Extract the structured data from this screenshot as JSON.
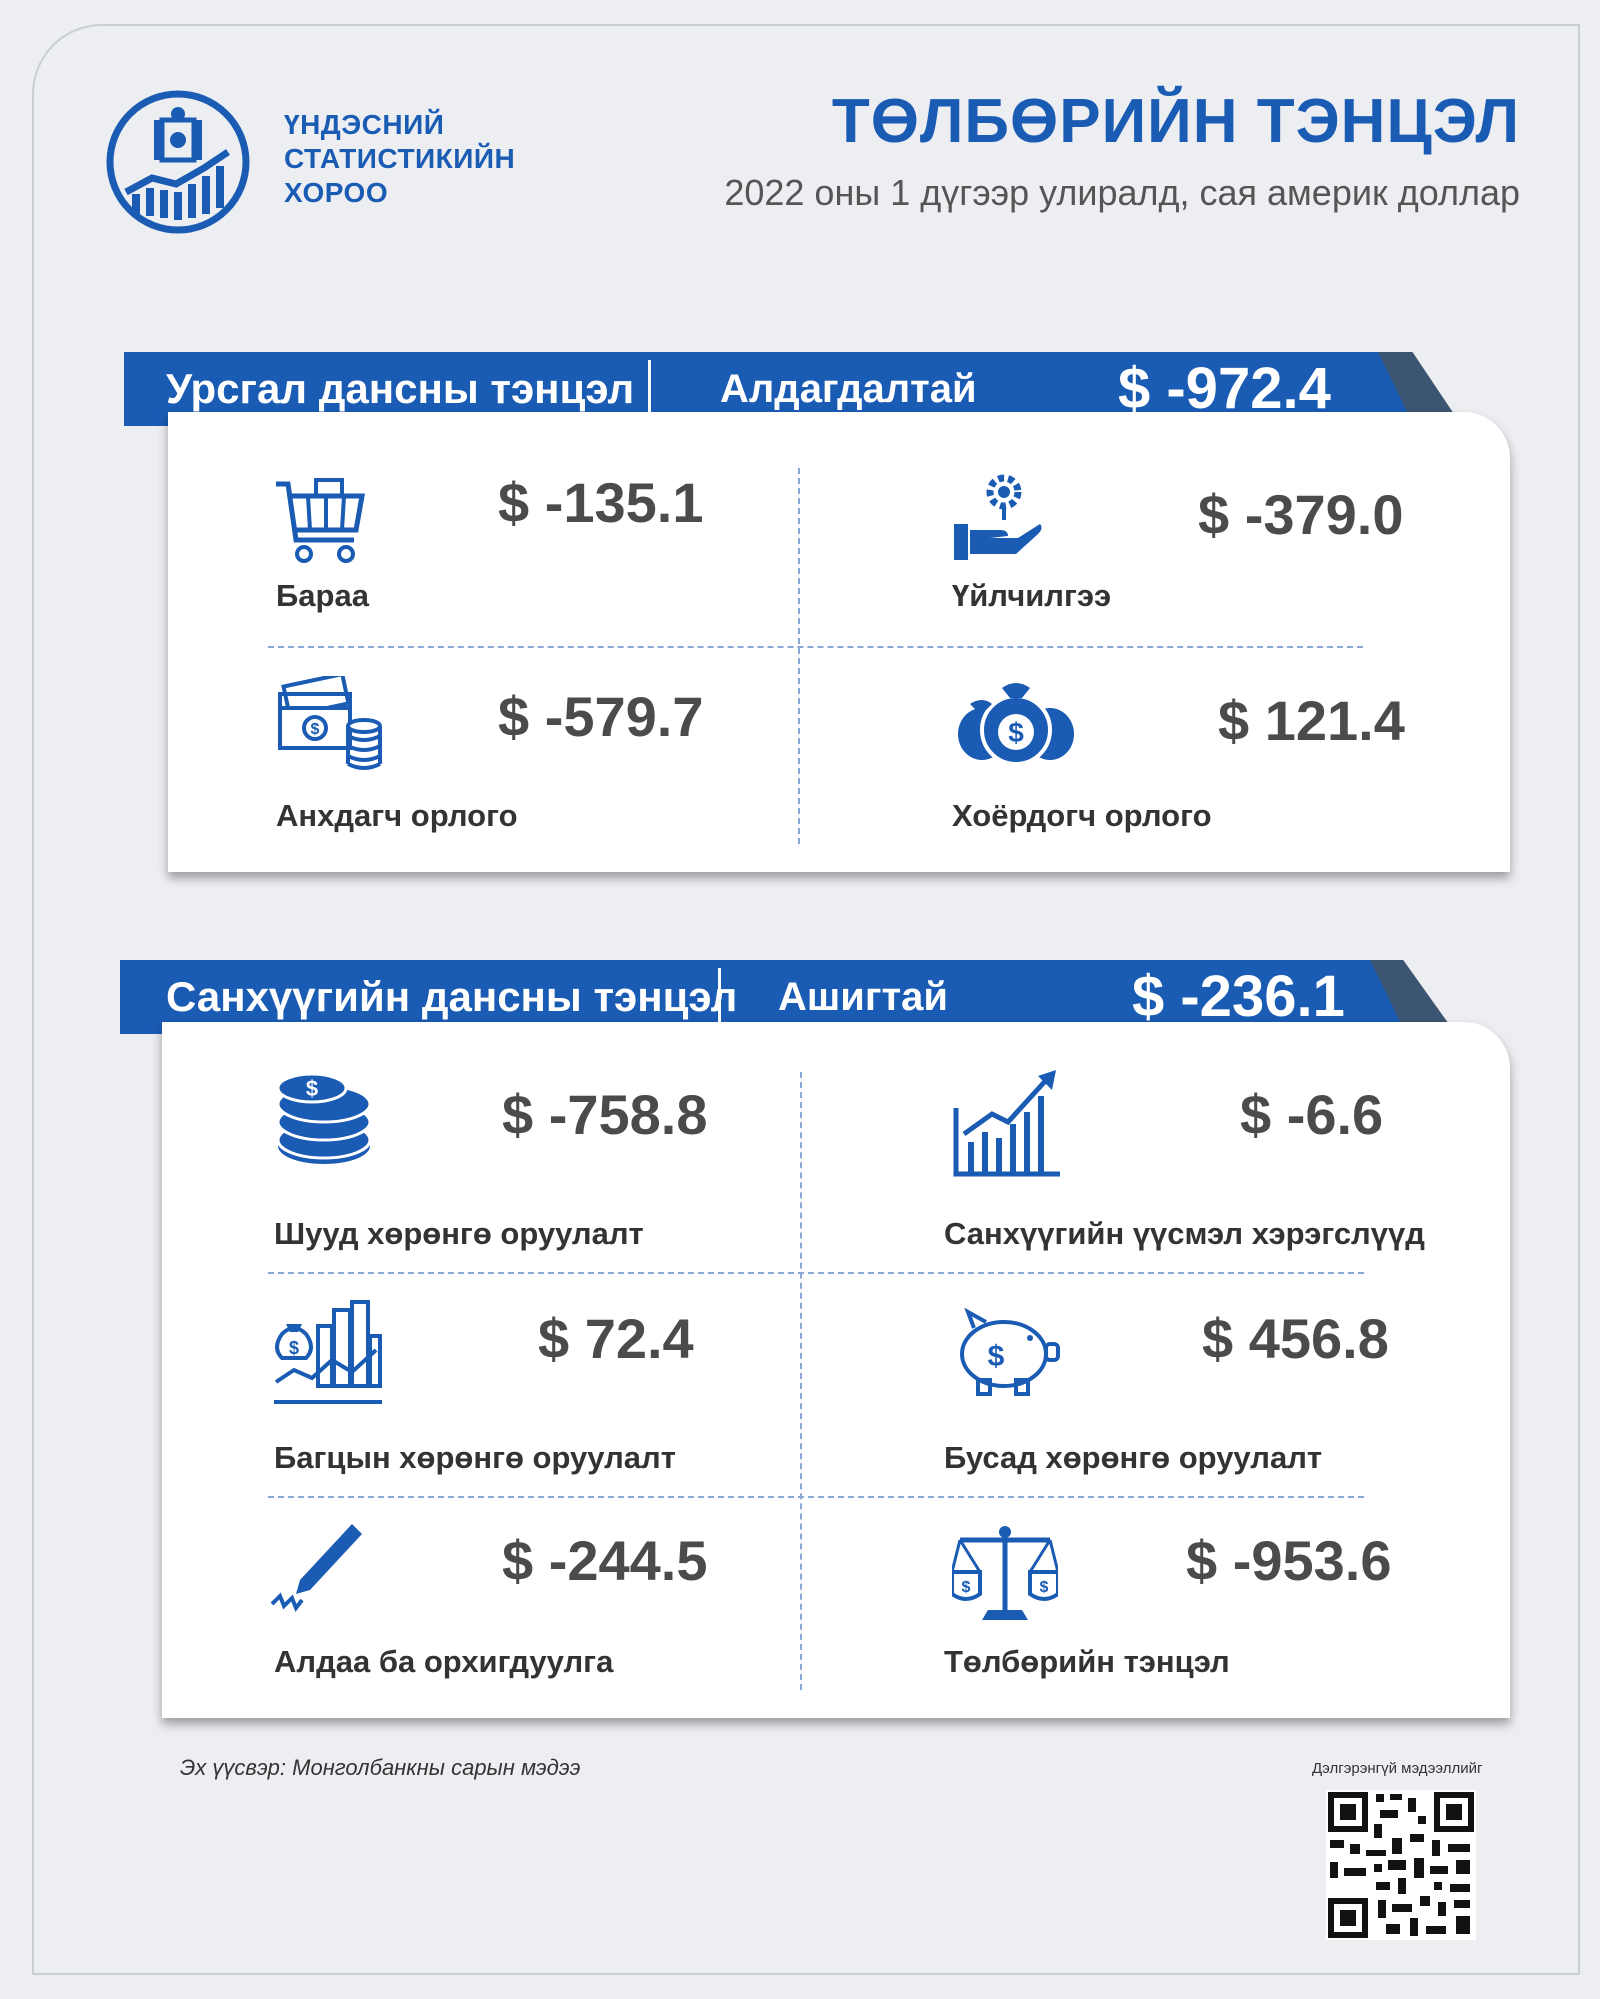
{
  "header": {
    "org_line1": "ҮНДЭСНИЙ",
    "org_line2": "СТАТИСТИКИЙН",
    "org_line3": "ХОРОО",
    "title": "ТӨЛБӨРИЙН ТЭНЦЭЛ",
    "subtitle": "2022 оны 1 дүгээр улиралд, сая америк доллар"
  },
  "current_account": {
    "label": "Урсгал дансны тэнцэл",
    "status": "Алдагдалтай",
    "value": "$ -972.4",
    "items": [
      {
        "label": "Бараа",
        "value": "$ -135.1",
        "icon": "shopping-cart-icon"
      },
      {
        "label": "Үйлчилгээ",
        "value": "$ -379.0",
        "icon": "service-hand-gear-icon"
      },
      {
        "label": "Анхдагч орлого",
        "value": "$ -579.7",
        "icon": "cash-coins-icon"
      },
      {
        "label": "Хоёрдогч орлого",
        "value": "$ 121.4",
        "icon": "money-bags-icon"
      }
    ]
  },
  "financial_account": {
    "label": "Санхүүгийн дансны тэнцэл",
    "status": "Ашигтай",
    "value": "$ -236.1",
    "items": [
      {
        "label": "Шууд хөрөнгө оруулалт",
        "value": "$ -758.8",
        "icon": "coin-stack-icon"
      },
      {
        "label": "Санхүүгийн үүсмэл хэрэгслүүд",
        "value": "$ -6.6",
        "icon": "growth-chart-icon"
      },
      {
        "label": "Багцын хөрөнгө оруулалт",
        "value": "$  72.4",
        "icon": "portfolio-city-icon"
      },
      {
        "label": "Бусад хөрөнгө оруулалт",
        "value": "$ 456.8",
        "icon": "piggy-bank-icon"
      },
      {
        "label": "Алдаа ба орхигдуулга",
        "value": "$ -244.5",
        "icon": "pen-icon"
      },
      {
        "label": "Төлбөрийн тэнцэл",
        "value": "$ -953.6",
        "icon": "balance-scale-icon"
      }
    ]
  },
  "footer": {
    "source": "Эх үүсвэр: Монголбанкны сарын мэдээ",
    "qr_label": "Дэлгэрэнгүй мэдээллийг"
  },
  "colors": {
    "brand_blue": "#1a5bb4",
    "banner_shadow": "#3b5573",
    "value_gray": "#4b4b4b",
    "background": "#eceef1"
  }
}
